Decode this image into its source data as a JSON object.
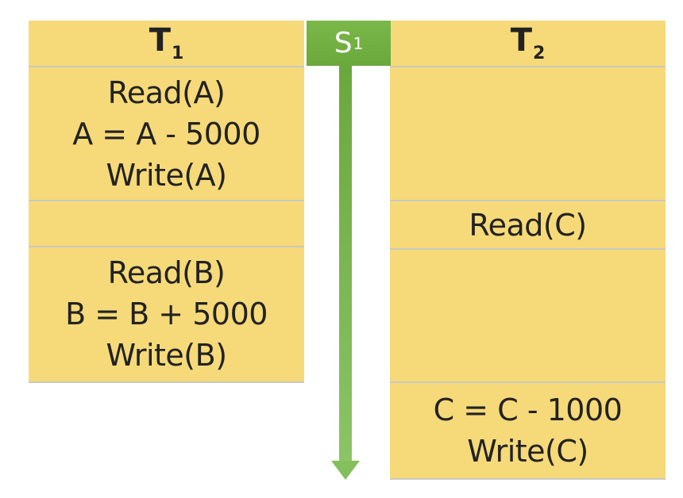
{
  "colors": {
    "cell_fill": "#f6da79",
    "schedule_green": "#73b142",
    "arrow_green": "#7ab752",
    "divider": "#c9c9bf"
  },
  "schedule": {
    "label": "S",
    "sub": "1"
  },
  "t1": {
    "header": {
      "label": "T",
      "sub": "1"
    },
    "block1": [
      "Read(A)",
      "A = A - 5000",
      "Write(A)"
    ],
    "block3": [
      "Read(B)",
      "B = B + 5000",
      "Write(B)"
    ]
  },
  "t2": {
    "header": {
      "label": "T",
      "sub": "2"
    },
    "block2": [
      "Read(C)"
    ],
    "block4": [
      "C = C - 1000",
      "Write(C)"
    ]
  },
  "icons": {
    "time_arrow": "down-arrow-icon"
  }
}
